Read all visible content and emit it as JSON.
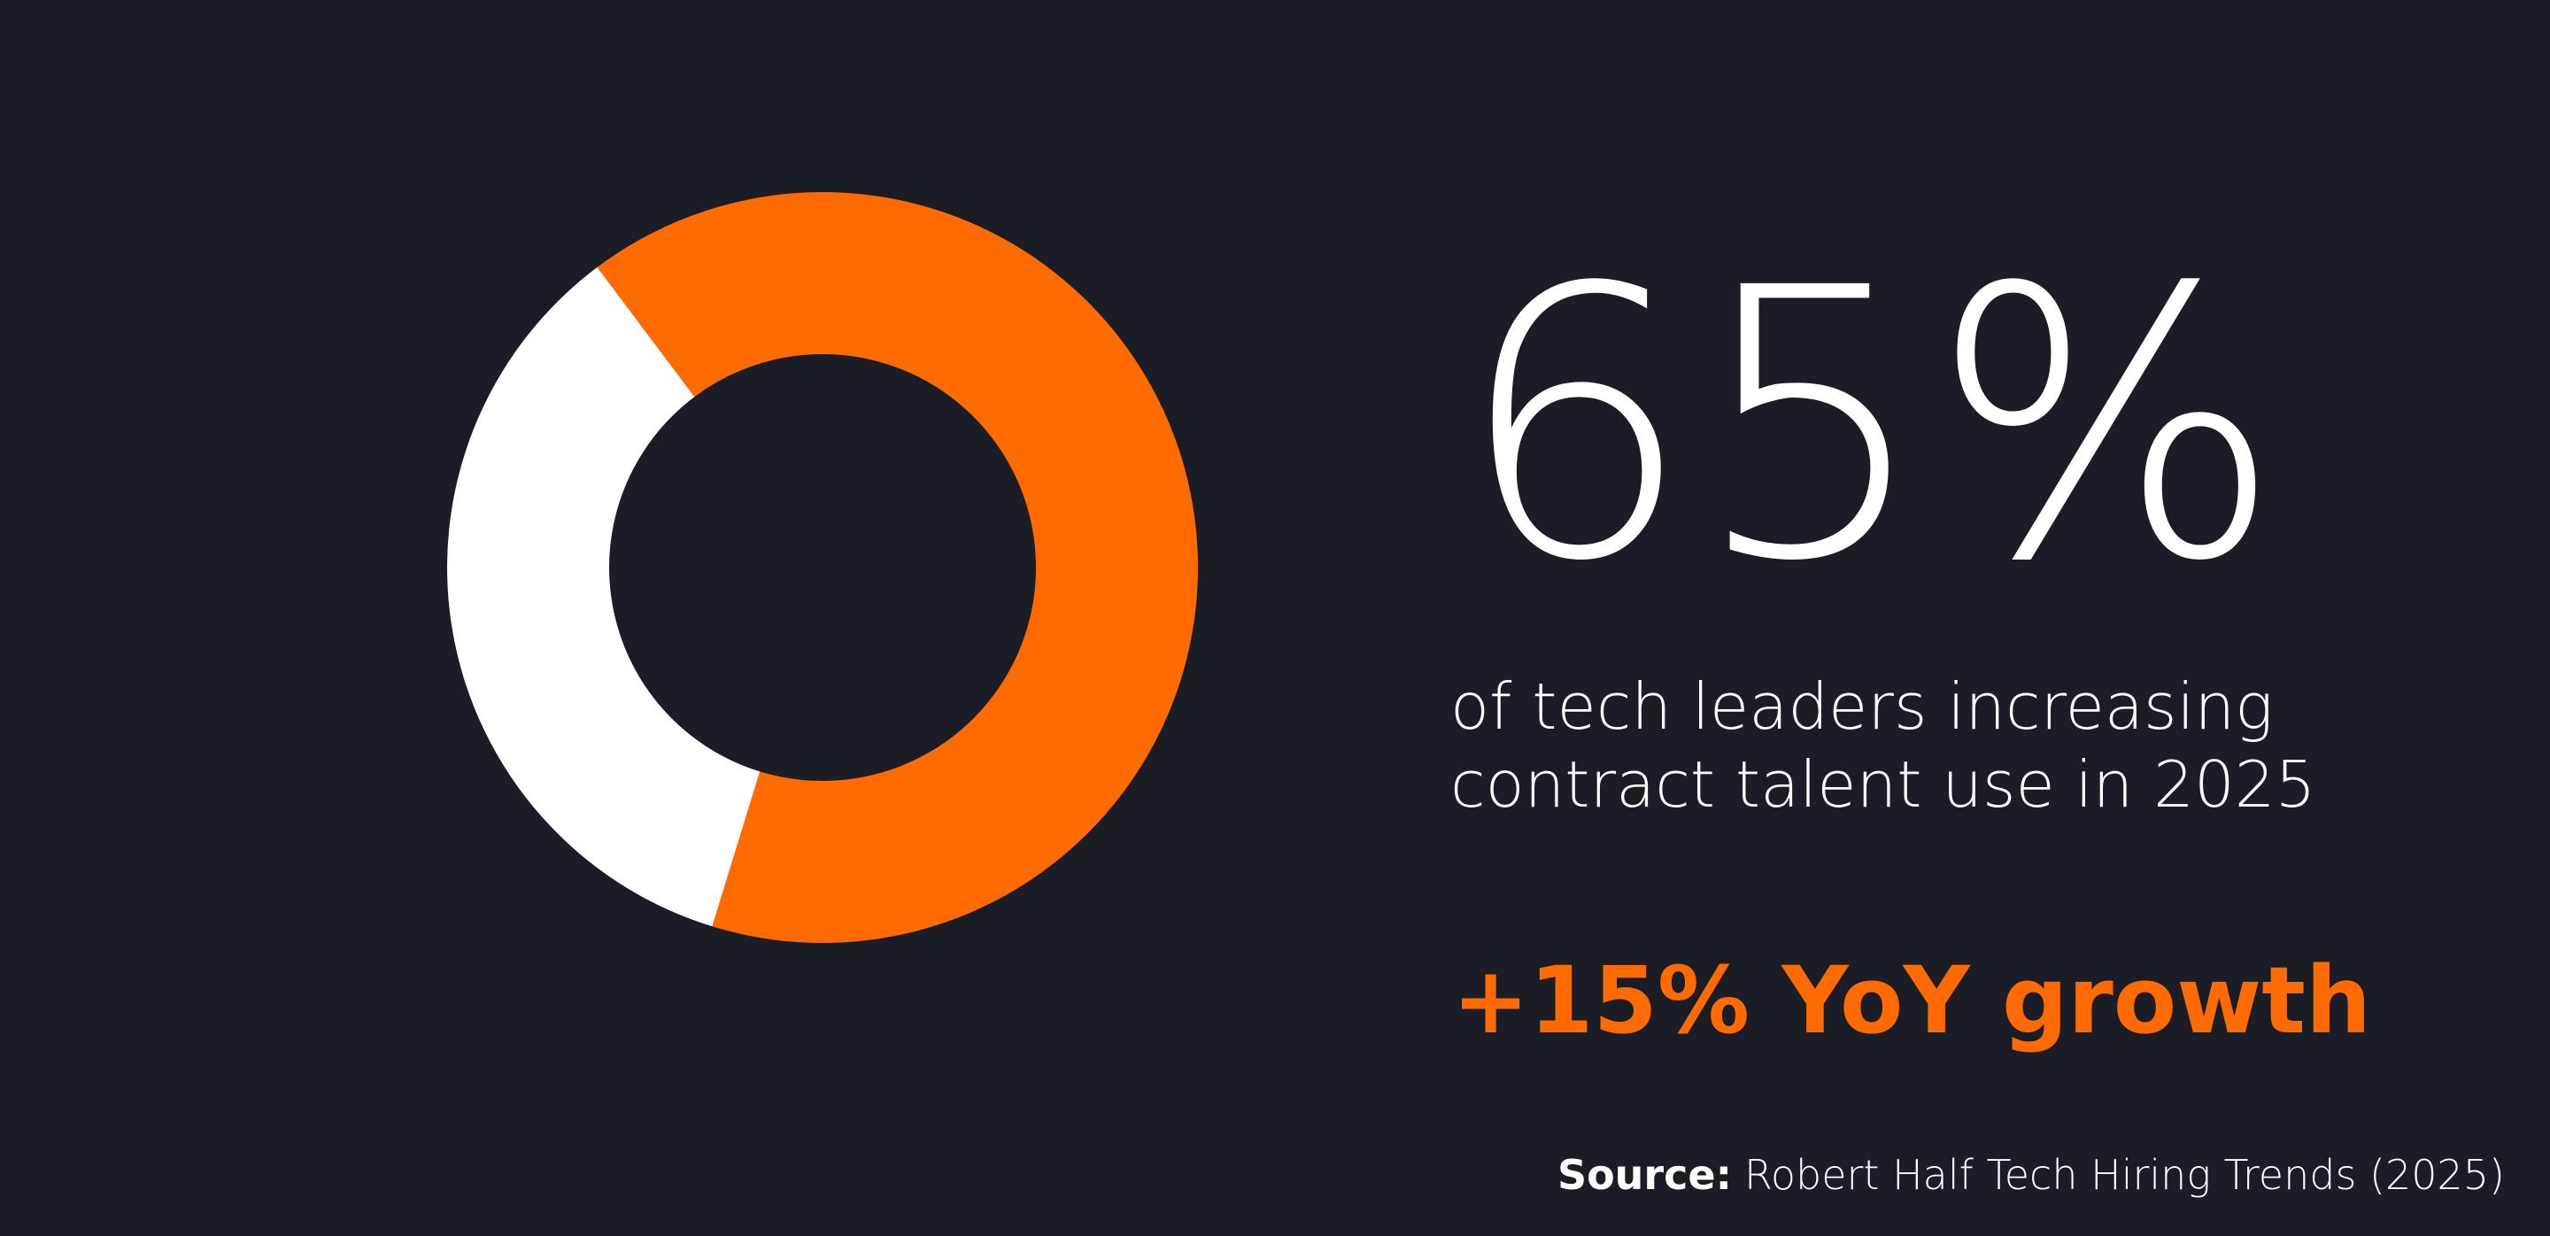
{
  "chart_data": {
    "type": "pie",
    "values": [
      65,
      35
    ],
    "colors": [
      "#ff6b00",
      "#ffffff"
    ],
    "headline": "65%",
    "description_lines": [
      "of tech leaders increasing",
      "contract talent use in 2025"
    ],
    "highlight": "+15% YoY growth",
    "source_label": "Source:",
    "source_text": "Robert Half Tech Hiring Trends (2025)"
  }
}
